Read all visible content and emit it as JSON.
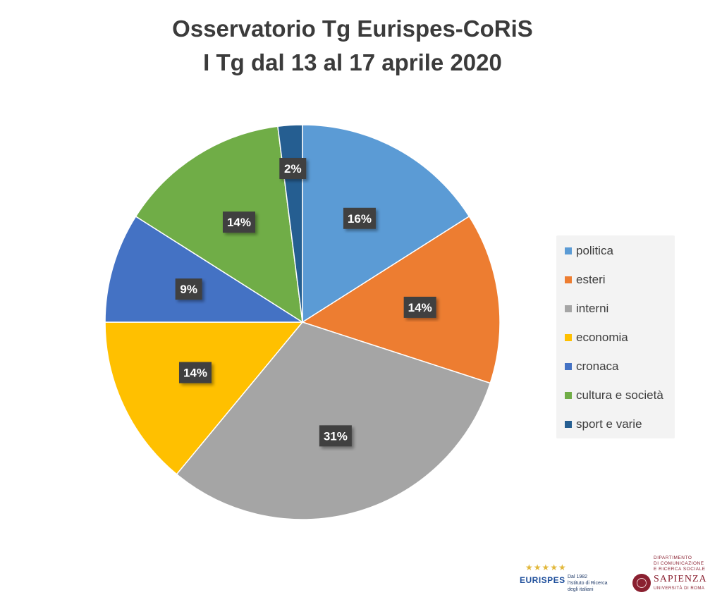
{
  "chart_data": {
    "type": "pie",
    "title": "Osservatorio Tg Eurispes-CoRiS",
    "subtitle": "I Tg dal 13 al 17 aprile 2020",
    "slices": [
      {
        "label": "politica",
        "value": 16,
        "display": "16%",
        "color": "#5b9bd5"
      },
      {
        "label": "esteri",
        "value": 14,
        "display": "14%",
        "color": "#ed7d31"
      },
      {
        "label": "interni",
        "value": 31,
        "display": "31%",
        "color": "#a5a5a5"
      },
      {
        "label": "economia",
        "value": 14,
        "display": "14%",
        "color": "#ffc000"
      },
      {
        "label": "cronaca",
        "value": 9,
        "display": "9%",
        "color": "#4472c4"
      },
      {
        "label": "cultura e società",
        "value": 14,
        "display": "14%",
        "color": "#70ad47"
      },
      {
        "label": "sport e varie",
        "value": 2,
        "display": "2%",
        "color": "#255e91"
      }
    ],
    "legend_position": "right"
  },
  "logos": {
    "eurispes": {
      "name": "EURISPES",
      "tagline": [
        "Dal 1982",
        "l'Istituto di Ricerca",
        "degli italiani"
      ]
    },
    "sapienza": {
      "department": [
        "Dipartimento",
        "di Comunicazione",
        "e Ricerca Sociale"
      ],
      "name": "SAPIENZA",
      "subtitle": "Università di Roma"
    }
  }
}
